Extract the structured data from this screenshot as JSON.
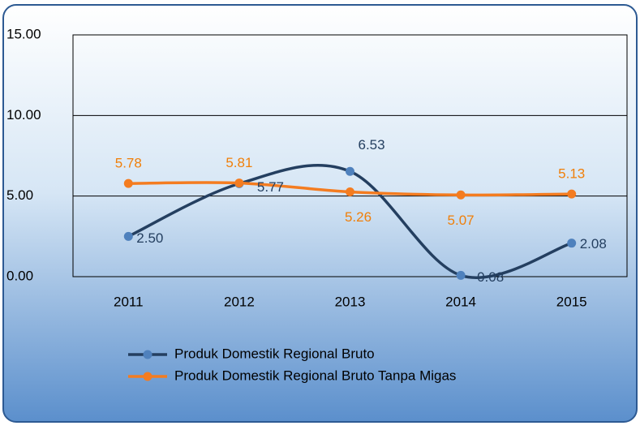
{
  "chart_data": {
    "type": "line",
    "categories": [
      "2011",
      "2012",
      "2013",
      "2014",
      "2015"
    ],
    "series": [
      {
        "name": "Produk Domestik Regional Bruto",
        "color": "#243f60",
        "marker_color": "#4f81bd",
        "values": [
          2.5,
          5.77,
          6.53,
          0.08,
          2.08
        ],
        "value_labels": [
          "2.50",
          "5.77",
          "6.53",
          "0.08",
          "2.08"
        ]
      },
      {
        "name": "Produk Domestik Regional Bruto Tanpa Migas",
        "color": "#f47c20",
        "marker_color": "#f47c20",
        "values": [
          5.78,
          5.81,
          5.26,
          5.07,
          5.13
        ],
        "value_labels": [
          "5.78",
          "5.81",
          "5.26",
          "5.07",
          "5.13"
        ]
      }
    ],
    "ylim": [
      0,
      15
    ],
    "yticks": [
      {
        "value": 0,
        "label": "0.00"
      },
      {
        "value": 5,
        "label": "5.00"
      },
      {
        "value": 10,
        "label": "10.00"
      },
      {
        "value": 15,
        "label": "15.00"
      }
    ],
    "grid": true,
    "smooth": true,
    "legend": "bottom"
  }
}
